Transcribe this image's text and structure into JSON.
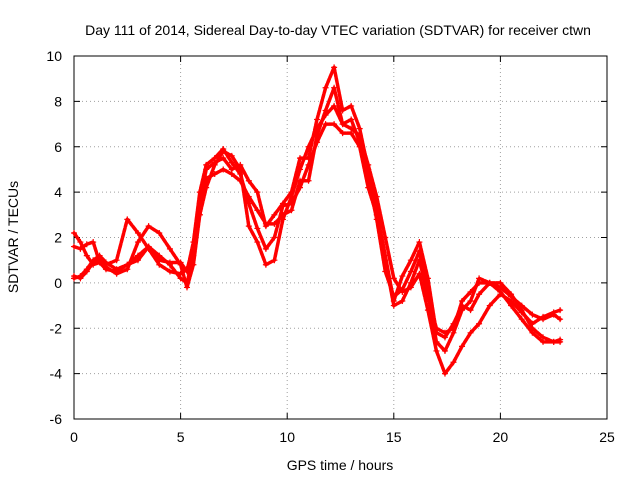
{
  "chart_data": {
    "type": "line",
    "title": "Day 111 of 2014, Sidereal Day-to-day VTEC variation (SDTVAR) for receiver ctwn",
    "xlabel": "GPS time / hours",
    "ylabel": "SDTVAR / TECUs",
    "xlim": [
      0,
      25
    ],
    "ylim": [
      -6,
      10
    ],
    "xticks": [
      "0",
      "5",
      "10",
      "15",
      "20",
      "25"
    ],
    "yticks": [
      "-6",
      "-4",
      "-2",
      "0",
      "2",
      "4",
      "6",
      "8",
      "10"
    ],
    "grid": true,
    "color": "#ff0000",
    "marker": "plus",
    "series": [
      {
        "x": [
          0,
          0.3,
          0.6,
          0.9,
          1.2,
          1.5,
          2.0,
          2.5,
          3.0,
          3.5,
          4.0,
          4.5,
          5.0,
          5.3,
          5.6,
          5.9,
          6.2,
          6.6,
          7.0,
          7.4,
          7.8,
          8.2,
          8.6,
          9.0,
          9.4,
          9.8,
          10.2,
          10.6,
          11.0,
          11.4,
          11.8,
          12.2,
          12.6,
          13.0,
          13.4,
          13.8,
          14.2,
          14.6,
          15.0,
          15.4,
          15.8,
          16.2,
          16.6,
          17.0,
          17.4,
          17.8,
          18.2,
          18.6,
          19.0,
          19.5,
          20.0,
          20.5,
          21.0,
          21.5,
          22.0,
          22.5,
          22.8
        ],
        "y": [
          2.2,
          1.8,
          1.2,
          0.8,
          0.9,
          0.6,
          0.5,
          0.8,
          1.0,
          1.6,
          1.2,
          0.8,
          0.2,
          0.0,
          1.2,
          3.5,
          5.0,
          5.3,
          5.5,
          5.0,
          5.2,
          4.5,
          4.0,
          2.5,
          3.0,
          3.5,
          4.0,
          5.5,
          5.5,
          7.2,
          8.6,
          9.5,
          7.6,
          7.8,
          6.8,
          5.0,
          3.2,
          1.2,
          -0.8,
          0.3,
          1.0,
          1.8,
          0.2,
          -2.2,
          -2.4,
          -1.8,
          -1.0,
          -1.2,
          -0.5,
          0.0,
          0.0,
          -0.5,
          -1.2,
          -2.0,
          -2.4,
          -2.6,
          -2.6
        ]
      },
      {
        "x": [
          0,
          0.3,
          0.6,
          0.9,
          1.2,
          1.5,
          2.0,
          2.5,
          3.0,
          3.5,
          4.0,
          4.5,
          5.0,
          5.3,
          5.6,
          5.9,
          6.2,
          6.6,
          7.0,
          7.4,
          7.8,
          8.2,
          8.6,
          9.0,
          9.4,
          9.8,
          10.2,
          10.6,
          11.0,
          11.4,
          11.8,
          12.2,
          12.6,
          13.0,
          13.4,
          13.8,
          14.2,
          14.6,
          15.0,
          15.4,
          15.8,
          16.2,
          16.6,
          17.0,
          17.4,
          17.8,
          18.2,
          18.6,
          19.0,
          19.5,
          20.0,
          20.5,
          21.0,
          21.5,
          22.0,
          22.5,
          22.8
        ],
        "y": [
          0.3,
          0.2,
          0.5,
          0.9,
          1.0,
          0.8,
          1.0,
          2.8,
          2.2,
          1.5,
          0.8,
          0.5,
          0.4,
          0.6,
          1.5,
          3.0,
          4.6,
          4.8,
          5.0,
          4.8,
          4.5,
          3.8,
          3.2,
          2.6,
          2.6,
          3.0,
          3.2,
          4.5,
          4.5,
          6.5,
          7.6,
          8.6,
          7.0,
          7.2,
          6.2,
          4.6,
          2.8,
          0.5,
          -0.6,
          -0.3,
          0.5,
          1.4,
          -0.4,
          -2.6,
          -3.0,
          -2.2,
          -1.2,
          -0.8,
          0.2,
          0.0,
          -0.4,
          -1.0,
          -1.6,
          -2.2,
          -2.6,
          -2.6,
          -2.5
        ]
      },
      {
        "x": [
          0,
          0.3,
          0.6,
          0.9,
          1.2,
          1.5,
          2.0,
          2.5,
          3.0,
          3.5,
          4.0,
          4.5,
          5.0,
          5.3,
          5.6,
          5.9,
          6.2,
          6.6,
          7.0,
          7.4,
          7.8,
          8.2,
          8.6,
          9.0,
          9.4,
          9.8,
          10.2,
          10.6,
          11.0,
          11.4,
          11.8,
          12.2,
          12.6,
          13.0,
          13.4,
          13.8,
          14.2,
          14.6,
          15.0,
          15.4,
          15.8,
          16.2,
          16.6,
          17.0,
          17.4,
          17.8,
          18.2,
          18.6,
          19.0,
          19.5,
          20.0,
          20.5,
          21.0,
          21.5,
          22.0,
          22.5,
          22.8
        ],
        "y": [
          1.6,
          1.5,
          1.7,
          1.8,
          0.9,
          0.7,
          0.4,
          0.6,
          1.8,
          2.5,
          2.2,
          1.5,
          0.8,
          -0.2,
          0.8,
          3.0,
          4.2,
          5.2,
          5.8,
          5.6,
          5.0,
          2.5,
          1.8,
          0.8,
          1.0,
          2.8,
          3.8,
          5.0,
          6.0,
          6.8,
          7.4,
          7.8,
          7.0,
          6.8,
          6.5,
          5.2,
          3.8,
          2.0,
          0.2,
          -0.4,
          -0.2,
          0.4,
          -1.2,
          -3.0,
          -4.0,
          -3.5,
          -2.8,
          -2.2,
          -1.8,
          -1.0,
          -0.5,
          -0.8,
          -1.3,
          -1.8,
          -1.5,
          -1.3,
          -1.2
        ]
      },
      {
        "x": [
          0,
          0.3,
          0.6,
          0.9,
          1.2,
          1.5,
          2.0,
          2.5,
          3.0,
          3.5,
          4.0,
          4.5,
          5.0,
          5.3,
          5.6,
          5.9,
          6.2,
          6.6,
          7.0,
          7.4,
          7.8,
          8.2,
          8.6,
          9.0,
          9.4,
          9.8,
          10.2,
          10.6,
          11.0,
          11.4,
          11.8,
          12.2,
          12.6,
          13.0,
          13.4,
          13.8,
          14.2,
          14.6,
          15.0,
          15.4,
          15.8,
          16.2,
          16.6,
          17.0,
          17.4,
          17.8,
          18.2,
          18.6,
          19.0,
          19.5,
          20.0,
          20.5,
          21.0,
          21.5,
          22.0,
          22.5,
          22.8
        ],
        "y": [
          0.2,
          0.3,
          0.6,
          1.0,
          1.2,
          0.9,
          0.6,
          0.8,
          1.2,
          1.6,
          1.0,
          0.9,
          0.9,
          0.5,
          1.8,
          4.0,
          5.2,
          5.5,
          5.9,
          5.3,
          4.8,
          3.5,
          2.4,
          1.5,
          2.0,
          3.4,
          3.5,
          4.2,
          5.2,
          6.2,
          7.0,
          7.0,
          6.6,
          6.6,
          6.0,
          4.2,
          3.0,
          1.0,
          -1.0,
          -0.8,
          0.0,
          1.0,
          -0.6,
          -2.0,
          -2.2,
          -2.0,
          -0.8,
          -0.4,
          0.0,
          0.0,
          -0.2,
          -0.6,
          -1.0,
          -1.4,
          -1.6,
          -1.4,
          -1.6
        ]
      }
    ]
  }
}
